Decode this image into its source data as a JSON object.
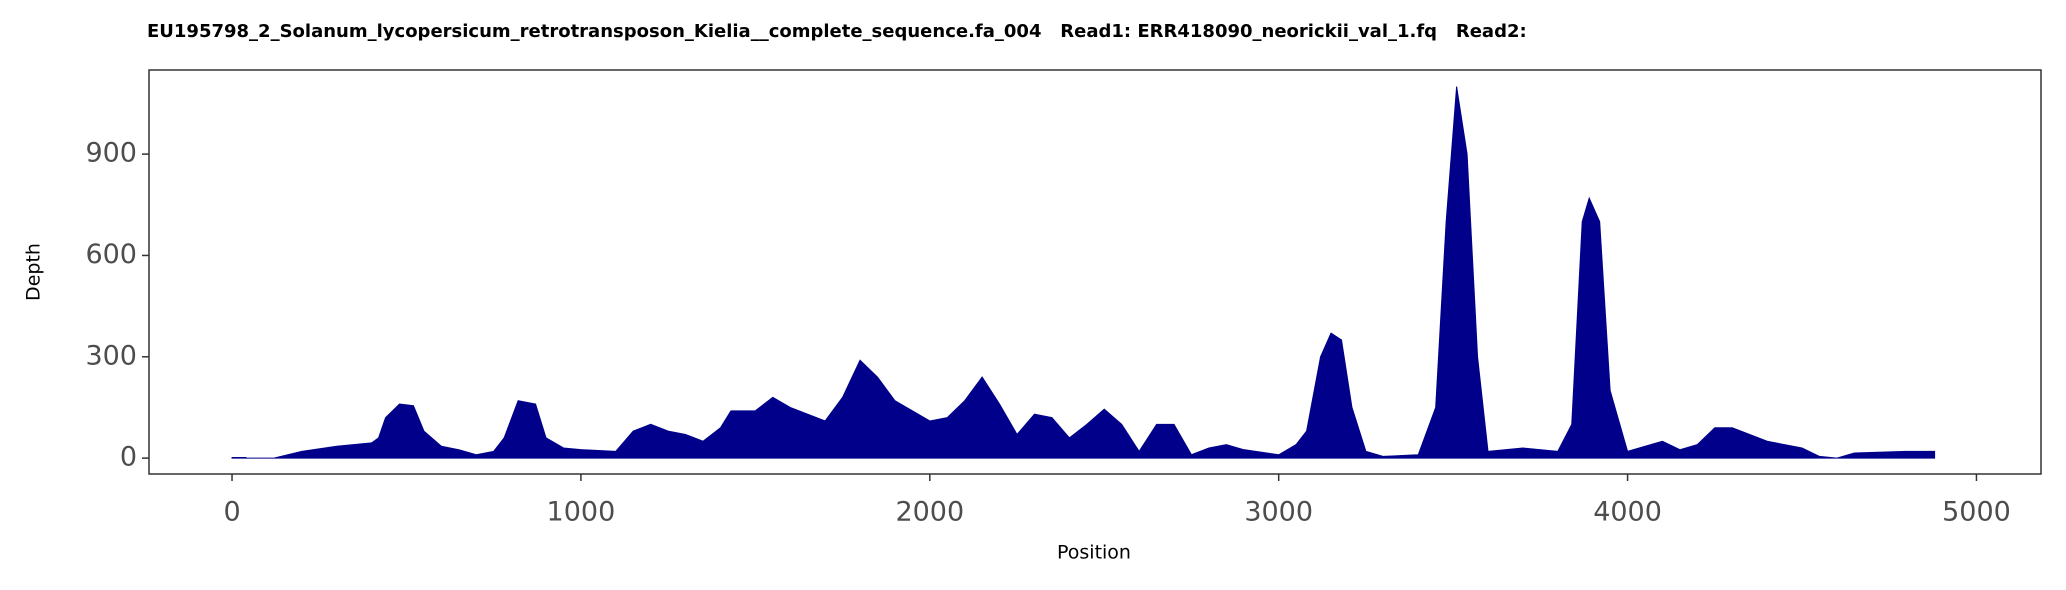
{
  "chart_data": {
    "type": "area",
    "title": "EU195798_2_Solanum_lycopersicum_retrotransposon_Kielia__complete_sequence.fa_004   Read1: ERR418090_neorickii_val_1.fq   Read2:",
    "x_label": "Position",
    "y_label": "Depth",
    "color": "#00008b",
    "x": [
      0,
      40,
      41,
      120,
      200,
      300,
      400,
      420,
      440,
      480,
      520,
      550,
      600,
      650,
      700,
      750,
      780,
      820,
      870,
      900,
      950,
      1000,
      1100,
      1150,
      1200,
      1250,
      1300,
      1350,
      1400,
      1430,
      1500,
      1550,
      1600,
      1700,
      1750,
      1800,
      1850,
      1900,
      1950,
      2000,
      2050,
      2100,
      2150,
      2200,
      2250,
      2300,
      2350,
      2400,
      2450,
      2500,
      2550,
      2600,
      2650,
      2700,
      2750,
      2800,
      2850,
      2900,
      3000,
      3050,
      3080,
      3120,
      3150,
      3180,
      3210,
      3250,
      3300,
      3400,
      3450,
      3480,
      3510,
      3540,
      3570,
      3600,
      3700,
      3800,
      3840,
      3870,
      3890,
      3920,
      3950,
      4000,
      4100,
      4150,
      4200,
      4250,
      4300,
      4400,
      4500,
      4550,
      4600,
      4650,
      4800,
      4880
    ],
    "values": [
      2,
      2,
      0,
      0,
      20,
      35,
      45,
      60,
      120,
      160,
      155,
      80,
      35,
      25,
      10,
      20,
      60,
      170,
      160,
      60,
      30,
      25,
      20,
      80,
      100,
      80,
      70,
      50,
      90,
      140,
      140,
      180,
      150,
      110,
      180,
      290,
      240,
      170,
      140,
      110,
      120,
      170,
      240,
      160,
      70,
      130,
      120,
      60,
      100,
      145,
      100,
      20,
      100,
      100,
      10,
      30,
      40,
      25,
      10,
      40,
      80,
      300,
      370,
      350,
      150,
      20,
      5,
      10,
      150,
      700,
      1100,
      900,
      300,
      20,
      30,
      20,
      100,
      700,
      770,
      700,
      200,
      20,
      50,
      25,
      40,
      90,
      90,
      50,
      30,
      5,
      0,
      15,
      20,
      20
    ],
    "xlim": [
      -238,
      5185
    ],
    "ylim": [
      -47,
      1149
    ],
    "xticks": [
      0,
      1000,
      2000,
      3000,
      4000,
      5000
    ],
    "yticks": [
      0,
      300,
      600,
      900
    ]
  }
}
